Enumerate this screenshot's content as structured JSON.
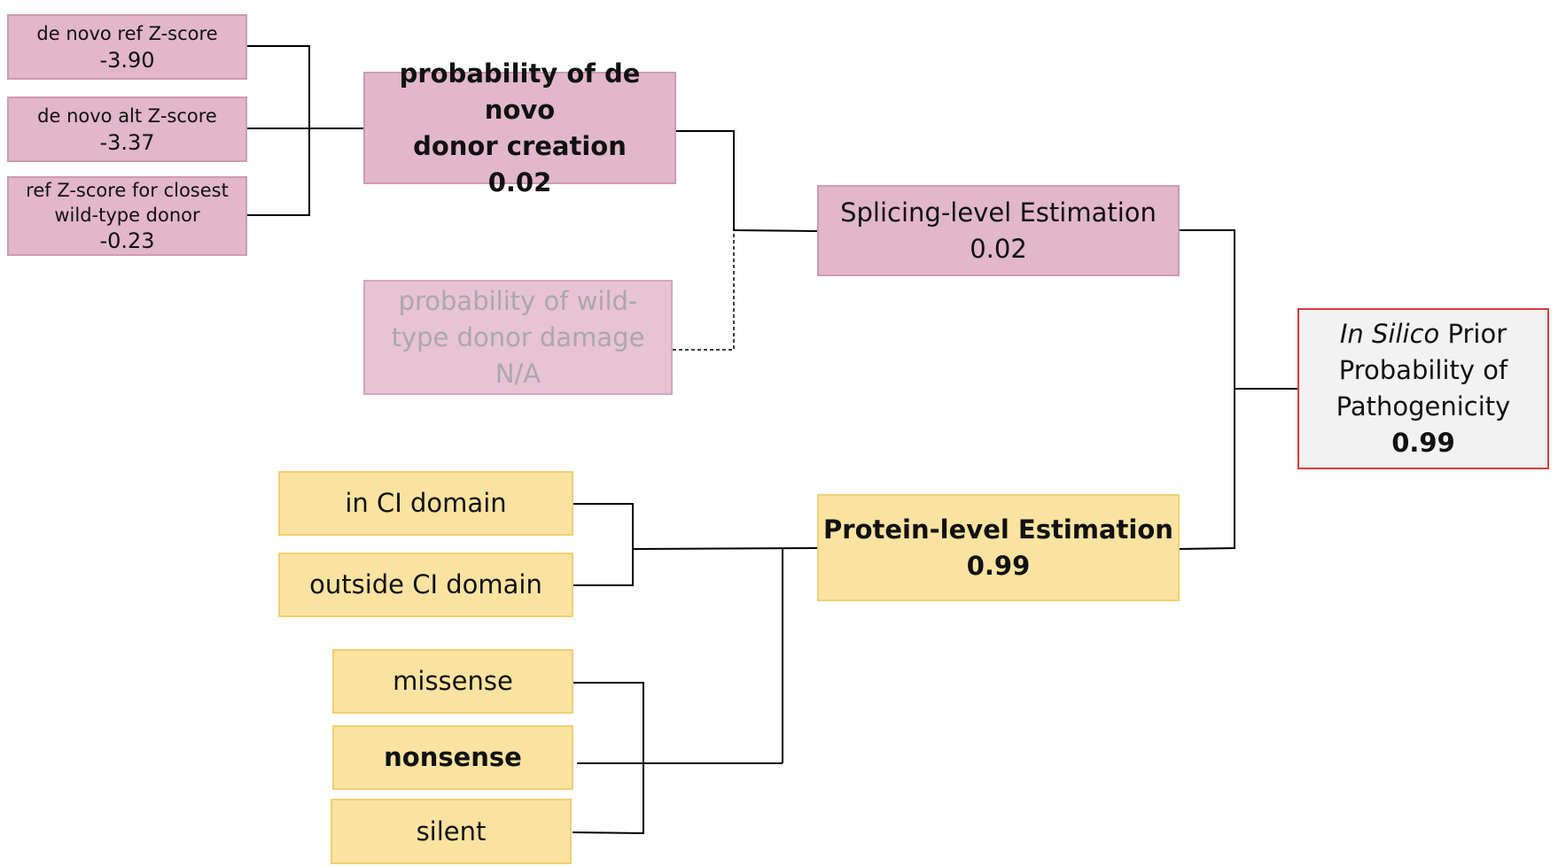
{
  "inputs": {
    "denovo_ref": {
      "label": "de novo ref Z-score",
      "value": "-3.90"
    },
    "denovo_alt": {
      "label": "de novo alt Z-score",
      "value": "-3.37"
    },
    "closest_wt": {
      "label_line1": "ref Z-score for closest",
      "label_line2": "wild-type donor",
      "value": "-0.23"
    }
  },
  "denovo_creation": {
    "line1": "probability of de novo",
    "line2": "donor creation",
    "value": "0.02"
  },
  "wt_damage": {
    "line1": "probability of wild-",
    "line2": "type donor damage",
    "value": "N/A"
  },
  "splicing": {
    "label": "Splicing-level Estimation",
    "value": "0.02"
  },
  "domain": {
    "in_ci": "in CI domain",
    "outside_ci": "outside CI domain"
  },
  "variant_type": {
    "missense": "missense",
    "nonsense": "nonsense",
    "silent": "silent"
  },
  "protein": {
    "label": "Protein-level Estimation",
    "value": "0.99"
  },
  "final": {
    "line1_italic": "In Silico",
    "line1_rest": " Prior",
    "line2": "Probability of",
    "line3": "Pathogenicity",
    "value": "0.99"
  },
  "colors": {
    "splicing_fill": "#e1b7c9",
    "protein_fill": "#fae3a0",
    "final_border": "#e23a3a",
    "faded_text": "#a9a9a9"
  }
}
